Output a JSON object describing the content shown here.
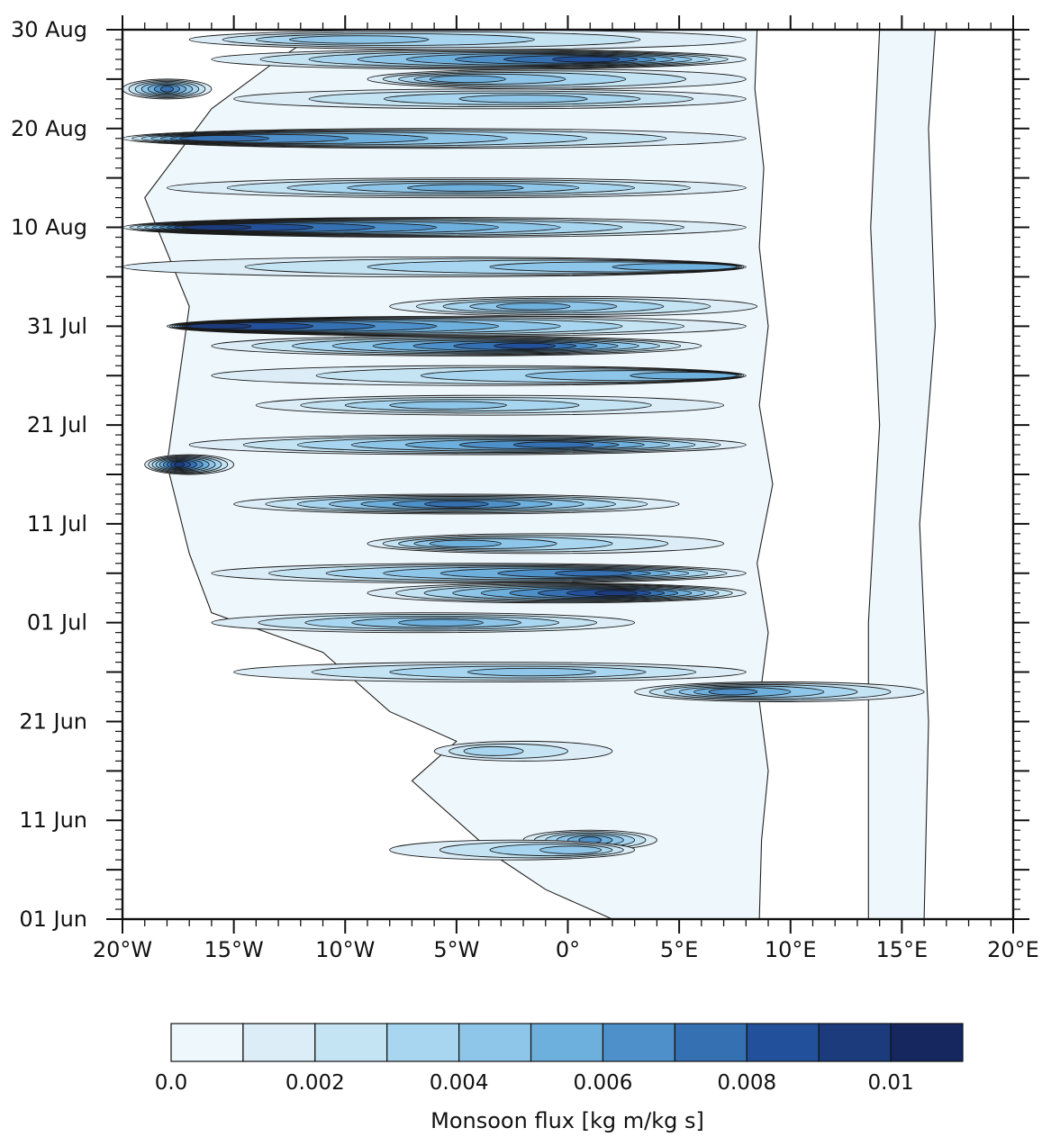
{
  "chart_data": {
    "type": "heatmap",
    "subtype": "filled-contour (Hovmöller diagram)",
    "title": "",
    "xlabel": "",
    "ylabel": "",
    "x_axis": {
      "range": [
        -20,
        20
      ],
      "ticks": [
        -20,
        -15,
        -10,
        -5,
        0,
        5,
        10,
        15,
        20
      ],
      "tick_labels": [
        "20°W",
        "15°W",
        "10°W",
        "5°W",
        "0°",
        "5°E",
        "10°E",
        "15°E",
        "20°E"
      ],
      "minor_step": 1
    },
    "y_axis": {
      "range": [
        "2000-06-01",
        "2000-08-30"
      ],
      "ticks": [
        "2000-06-01",
        "2000-06-11",
        "2000-06-21",
        "2000-07-01",
        "2000-07-11",
        "2000-07-21",
        "2000-07-31",
        "2000-08-10",
        "2000-08-20",
        "2000-08-30"
      ],
      "tick_labels": [
        "01 Jun",
        "11 Jun",
        "21 Jun",
        "01 Jul",
        "11 Jul",
        "21 Jul",
        "31 Jul",
        "10 Aug",
        "20 Aug",
        "30 Aug"
      ],
      "medium_tick_days": 5,
      "minor_tick_days": 1
    },
    "colorbar": {
      "title": "Monsoon flux [kg m/kg s]",
      "levels": [
        0.0,
        0.001,
        0.002,
        0.003,
        0.004,
        0.005,
        0.006,
        0.007,
        0.008,
        0.009,
        0.01,
        0.011
      ],
      "labeled_levels": [
        0.0,
        0.002,
        0.004,
        0.006,
        0.008,
        0.01
      ],
      "labels": [
        "0.0",
        "0.002",
        "0.004",
        "0.006",
        "0.008",
        "0.01"
      ],
      "colors": [
        "#eef7fb",
        "#dcedf7",
        "#c4e4f4",
        "#a8d6f0",
        "#8ec6ea",
        "#6eb0dd",
        "#4d90ca",
        "#3470b2",
        "#22509a",
        "#1b3b7c",
        "#15275e"
      ]
    },
    "note": "Flux regions with flux below 0 are white; approximate banded structure: values mostly between 0 and 0.004 kg m/kg s west of ~8.5°E, with peaks near 0.008–0.011 in narrow zonal streaks.",
    "bands": [
      {
        "date": "2000-08-29",
        "lon_start": -17,
        "lon_end": 8,
        "peak_lon": -11,
        "peak": 0.004
      },
      {
        "date": "2000-08-27",
        "lon_start": -16,
        "lon_end": 8,
        "peak_lon": 1.5,
        "peak": 0.008
      },
      {
        "date": "2000-08-25",
        "lon_start": -9,
        "lon_end": 8,
        "peak_lon": -5.5,
        "peak": 0.005
      },
      {
        "date": "2000-08-24",
        "lon_start": -20,
        "lon_end": -16,
        "peak_lon": -18,
        "peak": 0.007
      },
      {
        "date": "2000-08-23",
        "lon_start": -15,
        "lon_end": 8,
        "peak_lon": -1.5,
        "peak": 0.004
      },
      {
        "date": "2000-08-19",
        "lon_start": -20,
        "lon_end": 8,
        "peak_lon": -17,
        "peak": 0.007
      },
      {
        "date": "2000-08-14",
        "lon_start": -18,
        "lon_end": 8,
        "peak_lon": -4.5,
        "peak": 0.005
      },
      {
        "date": "2000-08-10",
        "lon_start": -20,
        "lon_end": 8,
        "peak_lon": -17,
        "peak": 0.009
      },
      {
        "date": "2000-08-06",
        "lon_start": -20,
        "lon_end": 8,
        "peak_lon": 7.5,
        "peak": 0.005
      },
      {
        "date": "2000-08-02",
        "lon_start": -8,
        "lon_end": 8.5,
        "peak_lon": -2,
        "peak": 0.005
      },
      {
        "date": "2000-07-31",
        "lon_start": -18,
        "lon_end": 8,
        "peak_lon": -17,
        "peak": 0.009
      },
      {
        "date": "2000-07-29",
        "lon_start": -16,
        "lon_end": 6,
        "peak_lon": -1.5,
        "peak": 0.008
      },
      {
        "date": "2000-07-26",
        "lon_start": -16,
        "lon_end": 8,
        "peak_lon": 7.5,
        "peak": 0.005
      },
      {
        "date": "2000-07-23",
        "lon_start": -14,
        "lon_end": 7,
        "peak_lon": -6,
        "peak": 0.004
      },
      {
        "date": "2000-07-19",
        "lon_start": -17,
        "lon_end": 8,
        "peak_lon": 0,
        "peak": 0.007
      },
      {
        "date": "2000-07-17",
        "lon_start": -19,
        "lon_end": -15,
        "peak_lon": -17.5,
        "peak": 0.009
      },
      {
        "date": "2000-07-13",
        "lon_start": -15,
        "lon_end": 5,
        "peak_lon": -5,
        "peak": 0.007
      },
      {
        "date": "2000-07-09",
        "lon_start": -9,
        "lon_end": 7,
        "peak_lon": -5.5,
        "peak": 0.005
      },
      {
        "date": "2000-07-06",
        "lon_start": -16,
        "lon_end": 8,
        "peak_lon": 2,
        "peak": 0.007
      },
      {
        "date": "2000-07-04",
        "lon_start": -9,
        "lon_end": 8,
        "peak_lon": 2.5,
        "peak": 0.009
      },
      {
        "date": "2000-07-01",
        "lon_start": -16,
        "lon_end": 3,
        "peak_lon": -5.5,
        "peak": 0.005
      },
      {
        "date": "2000-06-26",
        "lon_start": -15,
        "lon_end": 8,
        "peak_lon": -1,
        "peak": 0.004
      },
      {
        "date": "2000-06-24",
        "lon_start": 3,
        "lon_end": 16,
        "peak_lon": 7,
        "peak": 0.006
      },
      {
        "date": "2000-06-18",
        "lon_start": -6,
        "lon_end": 2,
        "peak_lon": -4,
        "peak": 0.003
      },
      {
        "date": "2000-06-09",
        "lon_start": -2,
        "lon_end": 4,
        "peak_lon": 1,
        "peak": 0.006
      },
      {
        "date": "2000-06-08",
        "lon_start": -8,
        "lon_end": 3,
        "peak_lon": 1,
        "peak": 0.004
      }
    ]
  }
}
